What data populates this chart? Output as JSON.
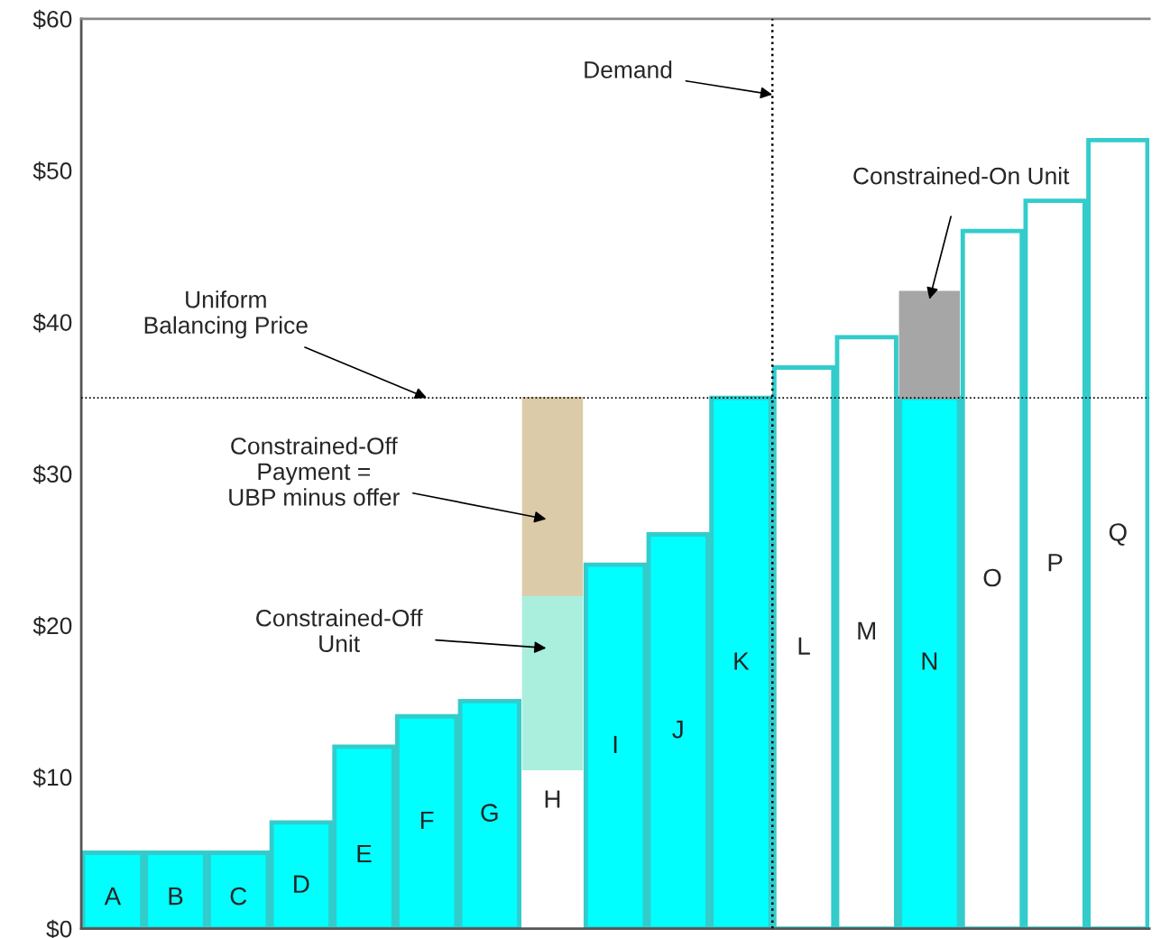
{
  "chart_data": {
    "type": "bar",
    "categories": [
      "A",
      "B",
      "C",
      "D",
      "E",
      "F",
      "G",
      "H",
      "I",
      "J",
      "K",
      "L",
      "M",
      "N",
      "O",
      "P",
      "Q"
    ],
    "series": [
      {
        "color": "#00ffff",
        "values": [
          5,
          5,
          5,
          7,
          12,
          14,
          15,
          null,
          24,
          26,
          35,
          null,
          null,
          35,
          null,
          null,
          null
        ]
      },
      {
        "color": "#ffffff",
        "values": [
          null,
          null,
          null,
          null,
          null,
          null,
          null,
          null,
          null,
          null,
          null,
          37,
          39,
          null,
          46,
          48,
          52
        ]
      },
      {
        "color": "#aaeedd",
        "base": [
          null,
          null,
          null,
          null,
          null,
          null,
          null,
          10.5,
          null,
          null,
          null,
          null,
          null,
          null,
          null,
          null,
          null
        ],
        "values": [
          null,
          null,
          null,
          null,
          null,
          null,
          null,
          11.5,
          null,
          null,
          null,
          null,
          null,
          null,
          null,
          null,
          null
        ]
      },
      {
        "color": "#dccba8",
        "base": [
          null,
          null,
          null,
          null,
          null,
          null,
          null,
          22,
          null,
          null,
          null,
          null,
          null,
          null,
          null,
          null,
          null
        ],
        "values": [
          null,
          null,
          null,
          null,
          null,
          null,
          null,
          13,
          null,
          null,
          null,
          null,
          null,
          null,
          null,
          null,
          null
        ]
      },
      {
        "color": "#a6a6a6",
        "base": [
          null,
          null,
          null,
          null,
          null,
          null,
          null,
          null,
          null,
          null,
          null,
          null,
          null,
          35,
          null,
          null,
          null
        ],
        "values": [
          null,
          null,
          null,
          null,
          null,
          null,
          null,
          null,
          null,
          null,
          null,
          null,
          null,
          7,
          null,
          null,
          null
        ]
      }
    ],
    "ylim": [
      0,
      60
    ],
    "yticks": [
      {
        "value": 0,
        "label": "$0"
      },
      {
        "value": 10,
        "label": "$10"
      },
      {
        "value": 20,
        "label": "$20"
      },
      {
        "value": 30,
        "label": "$30"
      },
      {
        "value": 40,
        "label": "$40"
      },
      {
        "value": 50,
        "label": "$50"
      },
      {
        "value": 60,
        "label": "$60"
      }
    ],
    "ref_lines": [
      {
        "axis": "y",
        "value": 35,
        "label": "Uniform\nBalancing Price",
        "line_style": "dotted"
      }
    ],
    "annotations": [
      "Demand",
      "Constrained-Off\nPayment =\nUBP minus offer",
      "Constrained-Off\nUnit",
      "Constrained-On Unit"
    ],
    "grid": false,
    "legend": false
  }
}
